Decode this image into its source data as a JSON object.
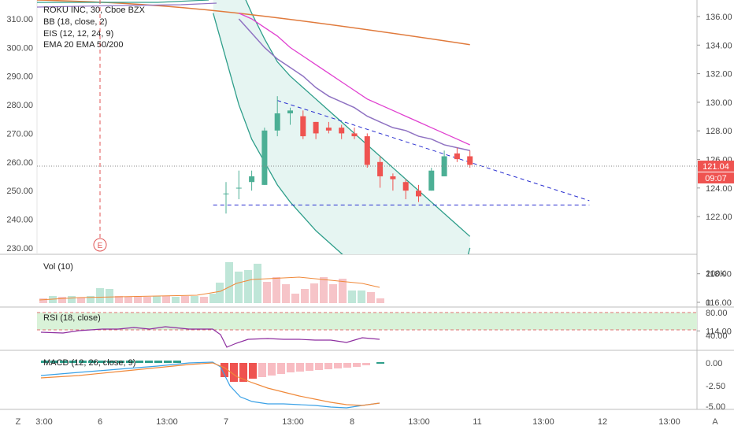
{
  "chart_data": [
    {
      "type": "candlestick",
      "panel": "price",
      "legend": [
        "ROKU INC, 30, Cboe BZX",
        "BB (18, close, 2)",
        "EIS (12, 12, 24, 9)",
        "EMA 20 EMA 50/200"
      ],
      "left_axis": {
        "ticks": [
          "310.00",
          "300.00",
          "290.00",
          "280.00",
          "270.00",
          "260.00",
          "250.00",
          "240.00",
          "230.00"
        ],
        "values": [
          310,
          300,
          290,
          280,
          270,
          260,
          250,
          240,
          230
        ]
      },
      "right_axis": {
        "ticks": [
          "136.00",
          "134.00",
          "132.00",
          "130.00",
          "128.00",
          "126.00",
          "124.00",
          "122.00",
          "118.00",
          "116.00",
          "114.00"
        ],
        "values": [
          136,
          134,
          132,
          130,
          128,
          126,
          124,
          122,
          118,
          116,
          114
        ]
      },
      "last_price": "121.04",
      "countdown": "09:07",
      "event_marker": "E",
      "candles": [
        {
          "o": 249,
          "h": 253,
          "l": 242,
          "c": 249
        },
        {
          "o": 251,
          "h": 257,
          "l": 247,
          "c": 251
        },
        {
          "o": 253,
          "h": 257,
          "l": 250,
          "c": 255
        },
        {
          "o": 252,
          "h": 272,
          "l": 252,
          "c": 271
        },
        {
          "o": 271,
          "h": 283,
          "l": 269,
          "c": 277
        },
        {
          "o": 277,
          "h": 279,
          "l": 273,
          "c": 278
        },
        {
          "o": 276,
          "h": 278,
          "l": 268,
          "c": 269
        },
        {
          "o": 274,
          "h": 274,
          "l": 268,
          "c": 270
        },
        {
          "o": 272,
          "h": 274,
          "l": 270,
          "c": 271
        },
        {
          "o": 272,
          "h": 273,
          "l": 268,
          "c": 270
        },
        {
          "o": 270,
          "h": 272,
          "l": 268,
          "c": 269
        },
        {
          "o": 269,
          "h": 270,
          "l": 258,
          "c": 259
        },
        {
          "o": 260,
          "h": 262,
          "l": 251,
          "c": 255
        },
        {
          "o": 255,
          "h": 256,
          "l": 250,
          "c": 254
        },
        {
          "o": 253,
          "h": 254,
          "l": 247,
          "c": 250
        },
        {
          "o": 250,
          "h": 252,
          "l": 246,
          "c": 248
        },
        {
          "o": 250,
          "h": 258,
          "l": 250,
          "c": 257
        },
        {
          "o": 255,
          "h": 264,
          "l": 255,
          "c": 262
        },
        {
          "o": 263,
          "h": 265,
          "l": 260,
          "c": 261
        },
        {
          "o": 262,
          "h": 264,
          "l": 258,
          "c": 259
        }
      ],
      "trendline_upper": [
        {
          "i": 4,
          "v": 281.5
        },
        {
          "i": 28.3,
          "v": 246.5
        }
      ],
      "trendline_lower": [
        {
          "i": -1,
          "v": 245
        },
        {
          "i": 28.3,
          "v": 245
        }
      ],
      "bb_upper": [
        {
          "i": -1,
          "v": 330
        },
        {
          "i": 0,
          "v": 330
        },
        {
          "i": 1,
          "v": 322
        },
        {
          "i": 2,
          "v": 312
        },
        {
          "i": 3,
          "v": 303
        },
        {
          "i": 4,
          "v": 295
        },
        {
          "i": 5,
          "v": 290
        },
        {
          "i": 6,
          "v": 286
        },
        {
          "i": 7,
          "v": 282
        },
        {
          "i": 8,
          "v": 278
        },
        {
          "i": 9,
          "v": 274
        },
        {
          "i": 10,
          "v": 270
        },
        {
          "i": 11,
          "v": 266
        },
        {
          "i": 12,
          "v": 262
        },
        {
          "i": 13,
          "v": 258
        },
        {
          "i": 14,
          "v": 254
        },
        {
          "i": 15,
          "v": 250
        },
        {
          "i": 16,
          "v": 246
        },
        {
          "i": 17,
          "v": 242
        },
        {
          "i": 18,
          "v": 238
        },
        {
          "i": 19,
          "v": 234
        }
      ],
      "bb_lower": [
        {
          "i": -1,
          "v": 312
        },
        {
          "i": 0,
          "v": 296
        },
        {
          "i": 1,
          "v": 280
        },
        {
          "i": 2,
          "v": 268
        },
        {
          "i": 3,
          "v": 260
        },
        {
          "i": 4,
          "v": 252
        },
        {
          "i": 5,
          "v": 246
        },
        {
          "i": 6,
          "v": 241
        },
        {
          "i": 7,
          "v": 236
        },
        {
          "i": 8,
          "v": 232
        },
        {
          "i": 9,
          "v": 228
        },
        {
          "i": 10,
          "v": 224
        },
        {
          "i": 11,
          "v": 220
        },
        {
          "i": 12,
          "v": 216
        },
        {
          "i": 13,
          "v": 212
        },
        {
          "i": 14,
          "v": 210
        },
        {
          "i": 15,
          "v": 208
        },
        {
          "i": 16,
          "v": 206
        },
        {
          "i": 17,
          "v": 208
        },
        {
          "i": 18,
          "v": 213
        },
        {
          "i": 19,
          "v": 230
        }
      ],
      "ema20": [
        {
          "i": 1,
          "v": 312
        },
        {
          "i": 2,
          "v": 310
        },
        {
          "i": 3,
          "v": 307
        },
        {
          "i": 4,
          "v": 304
        },
        {
          "i": 5,
          "v": 300
        },
        {
          "i": 6,
          "v": 297
        },
        {
          "i": 7,
          "v": 294
        },
        {
          "i": 8,
          "v": 291
        },
        {
          "i": 9,
          "v": 288
        },
        {
          "i": 10,
          "v": 285
        },
        {
          "i": 11,
          "v": 282
        },
        {
          "i": 12,
          "v": 280
        },
        {
          "i": 13,
          "v": 278
        },
        {
          "i": 14,
          "v": 276
        },
        {
          "i": 15,
          "v": 274
        },
        {
          "i": 16,
          "v": 272
        },
        {
          "i": 17,
          "v": 270
        },
        {
          "i": 18,
          "v": 268
        },
        {
          "i": 19,
          "v": 266
        }
      ],
      "ema50": [
        {
          "i": 1,
          "v": 310
        },
        {
          "i": 2,
          "v": 305
        },
        {
          "i": 3,
          "v": 300
        },
        {
          "i": 4,
          "v": 296
        },
        {
          "i": 5,
          "v": 293
        },
        {
          "i": 6,
          "v": 290
        },
        {
          "i": 7,
          "v": 286
        },
        {
          "i": 8,
          "v": 283
        },
        {
          "i": 9,
          "v": 281
        },
        {
          "i": 10,
          "v": 279
        },
        {
          "i": 11,
          "v": 276
        },
        {
          "i": 12,
          "v": 274
        },
        {
          "i": 13,
          "v": 272
        },
        {
          "i": 14,
          "v": 271
        },
        {
          "i": 15,
          "v": 269
        },
        {
          "i": 16,
          "v": 268
        },
        {
          "i": 17,
          "v": 266
        },
        {
          "i": 18,
          "v": 265
        },
        {
          "i": 19,
          "v": 264
        }
      ],
      "ema200": [
        {
          "i": -1,
          "v": 308
        },
        {
          "i": 19,
          "v": 301
        }
      ]
    },
    {
      "type": "bar",
      "panel": "volume",
      "label": "Vol (10)",
      "axis_ticks": [
        "200K",
        "0"
      ],
      "axis_values": [
        200000,
        0
      ]
    },
    {
      "type": "line",
      "panel": "rsi",
      "label": "RSI (18, close)",
      "axis_ticks": [
        "80.00",
        "40.00"
      ],
      "axis_values": [
        80,
        40
      ]
    },
    {
      "type": "bar",
      "panel": "macd",
      "label": "MACD (12, 26, close, 9)",
      "axis_ticks": [
        "0.00",
        "-2.50",
        "-5.00"
      ],
      "axis_values": [
        0,
        -2.5,
        -5
      ]
    }
  ],
  "time_axis": {
    "labels": [
      "3:00",
      "6",
      "13:00",
      "7",
      "13:00",
      "8",
      "13:00",
      "11",
      "13:00",
      "12",
      "13:00"
    ]
  },
  "bottom_bar": {
    "left_btn": "Z",
    "right_btn": "A"
  },
  "colors": {
    "up": "#4caf95",
    "down": "#ef5350",
    "bb_line": "#2e9e8a",
    "bb_fill": "#e6f5f2",
    "ema20": "#e040d0",
    "ema50": "#8f72c2",
    "ema200": "#e07a3c",
    "trend": "#2a2fd0",
    "rsi": "#8e2fa0",
    "rsi_band": "#d9f2d8",
    "macd": "#3aa1e6",
    "signal": "#f0893a"
  }
}
